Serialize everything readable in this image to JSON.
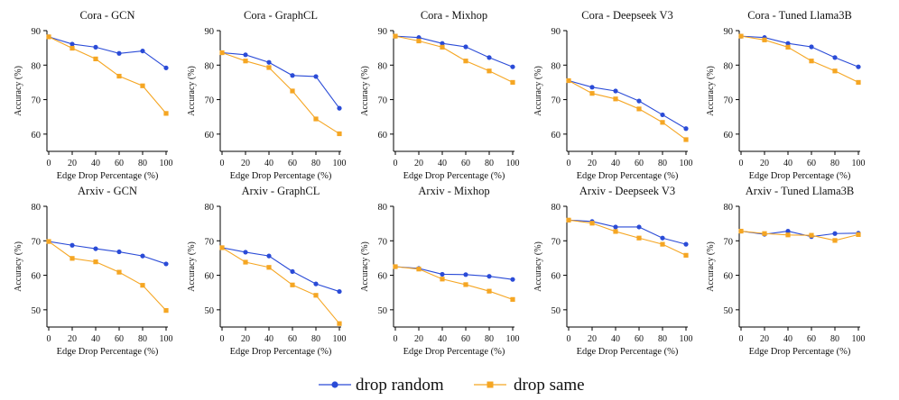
{
  "colors": {
    "random": "#2a4bd7",
    "same": "#f5a623"
  },
  "legend": {
    "random": "drop random",
    "same": "drop same"
  },
  "chart_data": [
    {
      "type": "line",
      "title": "Cora - GCN",
      "xlabel": "Edge Drop Percentage (%)",
      "ylabel": "Accuracy (%)",
      "x": [
        0,
        20,
        40,
        60,
        80,
        100
      ],
      "ylim": [
        55,
        90
      ],
      "yticks": [
        60,
        70,
        80,
        90
      ],
      "xticks": [
        0,
        20,
        40,
        60,
        80,
        100
      ],
      "grid": false,
      "series": [
        {
          "name": "drop random",
          "values": [
            88.2,
            86.1,
            85.2,
            83.4,
            84.1,
            79.2
          ]
        },
        {
          "name": "drop same",
          "values": [
            88.2,
            84.9,
            81.8,
            76.8,
            74.0,
            66.0
          ]
        }
      ]
    },
    {
      "type": "line",
      "title": "Cora - GraphCL",
      "xlabel": "Edge Drop Percentage (%)",
      "ylabel": "Accuracy (%)",
      "x": [
        0,
        20,
        40,
        60,
        80,
        100
      ],
      "ylim": [
        55,
        90
      ],
      "yticks": [
        60,
        70,
        80,
        90
      ],
      "xticks": [
        0,
        20,
        40,
        60,
        80,
        100
      ],
      "grid": false,
      "series": [
        {
          "name": "drop random",
          "values": [
            83.6,
            83.0,
            80.8,
            77.0,
            76.7,
            67.5
          ]
        },
        {
          "name": "drop same",
          "values": [
            83.6,
            81.2,
            79.3,
            72.5,
            64.4,
            60.1
          ]
        }
      ]
    },
    {
      "type": "line",
      "title": "Cora - Mixhop",
      "xlabel": "Edge Drop Percentage (%)",
      "ylabel": "Accuracy (%)",
      "x": [
        0,
        20,
        40,
        60,
        80,
        100
      ],
      "ylim": [
        55,
        90
      ],
      "yticks": [
        60,
        70,
        80,
        90
      ],
      "xticks": [
        0,
        20,
        40,
        60,
        80,
        100
      ],
      "grid": false,
      "series": [
        {
          "name": "drop random",
          "values": [
            88.4,
            88.0,
            86.3,
            85.3,
            82.2,
            79.5
          ]
        },
        {
          "name": "drop same",
          "values": [
            88.4,
            87.0,
            85.2,
            81.2,
            78.3,
            75.0
          ]
        }
      ]
    },
    {
      "type": "line",
      "title": "Cora - Deepseek V3",
      "xlabel": "Edge Drop Percentage (%)",
      "ylabel": "Accuracy (%)",
      "x": [
        0,
        20,
        40,
        60,
        80,
        100
      ],
      "ylim": [
        55,
        90
      ],
      "yticks": [
        60,
        70,
        80,
        90
      ],
      "xticks": [
        0,
        20,
        40,
        60,
        80,
        100
      ],
      "grid": false,
      "series": [
        {
          "name": "drop random",
          "values": [
            75.5,
            73.6,
            72.5,
            69.6,
            65.6,
            61.6
          ]
        },
        {
          "name": "drop same",
          "values": [
            75.5,
            71.8,
            70.2,
            67.3,
            63.4,
            58.4
          ]
        }
      ]
    },
    {
      "type": "line",
      "title": "Cora - Tuned Llama3B",
      "xlabel": "Edge Drop Percentage (%)",
      "ylabel": "Accuracy (%)",
      "x": [
        0,
        20,
        40,
        60,
        80,
        100
      ],
      "ylim": [
        55,
        90
      ],
      "yticks": [
        60,
        70,
        80,
        90
      ],
      "xticks": [
        0,
        20,
        40,
        60,
        80,
        100
      ],
      "grid": false,
      "series": [
        {
          "name": "drop random",
          "values": [
            88.4,
            88.0,
            86.3,
            85.3,
            82.2,
            79.5
          ]
        },
        {
          "name": "drop same",
          "values": [
            88.4,
            87.3,
            85.2,
            81.2,
            78.3,
            75.0
          ]
        }
      ]
    },
    {
      "type": "line",
      "title": "Arxiv - GCN",
      "xlabel": "Edge Drop Percentage (%)",
      "ylabel": "Accuracy (%)",
      "x": [
        0,
        20,
        40,
        60,
        80,
        100
      ],
      "ylim": [
        45,
        80
      ],
      "yticks": [
        50,
        60,
        70,
        80
      ],
      "xticks": [
        0,
        20,
        40,
        60,
        80,
        100
      ],
      "grid": false,
      "series": [
        {
          "name": "drop random",
          "values": [
            69.8,
            68.7,
            67.7,
            66.8,
            65.6,
            63.3
          ]
        },
        {
          "name": "drop same",
          "values": [
            69.8,
            64.9,
            63.9,
            60.9,
            57.1,
            49.8
          ]
        }
      ]
    },
    {
      "type": "line",
      "title": "Arxiv - GraphCL",
      "xlabel": "Edge Drop Percentage (%)",
      "ylabel": "Accuracy (%)",
      "x": [
        0,
        20,
        40,
        60,
        80,
        100
      ],
      "ylim": [
        45,
        80
      ],
      "yticks": [
        50,
        60,
        70,
        80
      ],
      "xticks": [
        0,
        20,
        40,
        60,
        80,
        100
      ],
      "grid": false,
      "series": [
        {
          "name": "drop random",
          "values": [
            68.0,
            66.7,
            65.6,
            61.1,
            57.5,
            55.3
          ]
        },
        {
          "name": "drop same",
          "values": [
            68.0,
            63.8,
            62.3,
            57.2,
            54.2,
            46.0
          ]
        }
      ]
    },
    {
      "type": "line",
      "title": "Arxiv - Mixhop",
      "xlabel": "Edge Drop Percentage (%)",
      "ylabel": "Accuracy (%)",
      "x": [
        0,
        20,
        40,
        60,
        80,
        100
      ],
      "ylim": [
        45,
        80
      ],
      "yticks": [
        50,
        60,
        70,
        80
      ],
      "xticks": [
        0,
        20,
        40,
        60,
        80,
        100
      ],
      "grid": false,
      "series": [
        {
          "name": "drop random",
          "values": [
            62.5,
            62.0,
            60.3,
            60.2,
            59.7,
            58.8
          ]
        },
        {
          "name": "drop same",
          "values": [
            62.5,
            61.8,
            58.9,
            57.3,
            55.4,
            53.0
          ]
        }
      ]
    },
    {
      "type": "line",
      "title": "Arxiv - Deepseek V3",
      "xlabel": "Edge Drop Percentage (%)",
      "ylabel": "Accuracy (%)",
      "x": [
        0,
        20,
        40,
        60,
        80,
        100
      ],
      "ylim": [
        45,
        80
      ],
      "yticks": [
        50,
        60,
        70,
        80
      ],
      "xticks": [
        0,
        20,
        40,
        60,
        80,
        100
      ],
      "grid": false,
      "series": [
        {
          "name": "drop random",
          "values": [
            76.0,
            75.6,
            74.0,
            74.0,
            70.8,
            69.0
          ]
        },
        {
          "name": "drop same",
          "values": [
            76.0,
            75.1,
            72.7,
            70.8,
            69.0,
            65.8
          ]
        }
      ]
    },
    {
      "type": "line",
      "title": "Arxiv - Tuned Llama3B",
      "xlabel": "Edge Drop Percentage (%)",
      "ylabel": "Accuracy (%)",
      "x": [
        0,
        20,
        40,
        60,
        80,
        100
      ],
      "ylim": [
        45,
        80
      ],
      "yticks": [
        50,
        60,
        70,
        80
      ],
      "xticks": [
        0,
        20,
        40,
        60,
        80,
        100
      ],
      "grid": false,
      "series": [
        {
          "name": "drop random",
          "values": [
            72.8,
            71.9,
            72.8,
            71.2,
            72.1,
            72.2
          ]
        },
        {
          "name": "drop same",
          "values": [
            72.8,
            72.1,
            71.7,
            71.6,
            70.1,
            71.8
          ]
        }
      ]
    }
  ]
}
